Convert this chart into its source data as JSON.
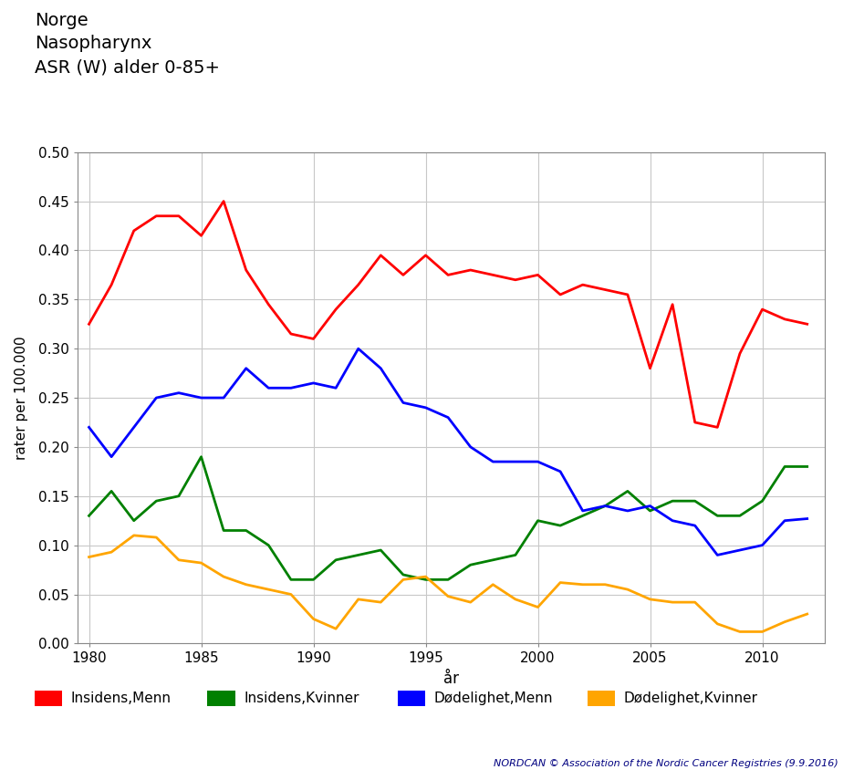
{
  "title_lines": [
    "Norge",
    "Nasopharynx",
    "ASR (W) alder 0-85+"
  ],
  "xlabel": "år",
  "ylabel": "rater per 100.000",
  "ylim": [
    0.0,
    0.5
  ],
  "yticks": [
    0.0,
    0.05,
    0.1,
    0.15,
    0.2,
    0.25,
    0.3,
    0.35,
    0.4,
    0.45,
    0.5
  ],
  "years": [
    1980,
    1981,
    1982,
    1983,
    1984,
    1985,
    1986,
    1987,
    1988,
    1989,
    1990,
    1991,
    1992,
    1993,
    1994,
    1995,
    1996,
    1997,
    1998,
    1999,
    2000,
    2001,
    2002,
    2003,
    2004,
    2005,
    2006,
    2007,
    2008,
    2009,
    2010,
    2011,
    2012
  ],
  "insidens_menn": [
    0.325,
    0.365,
    0.42,
    0.435,
    0.435,
    0.415,
    0.45,
    0.38,
    0.345,
    0.315,
    0.31,
    0.34,
    0.365,
    0.395,
    0.375,
    0.395,
    0.375,
    0.38,
    0.375,
    0.37,
    0.375,
    0.355,
    0.365,
    0.36,
    0.355,
    0.28,
    0.345,
    0.225,
    0.22,
    0.295,
    0.34,
    0.33,
    0.325
  ],
  "insidens_kvinner": [
    0.13,
    0.155,
    0.125,
    0.145,
    0.15,
    0.19,
    0.115,
    0.115,
    0.1,
    0.065,
    0.065,
    0.085,
    0.09,
    0.095,
    0.07,
    0.065,
    0.065,
    0.08,
    0.085,
    0.09,
    0.125,
    0.12,
    0.13,
    0.14,
    0.155,
    0.135,
    0.145,
    0.145,
    0.13,
    0.13,
    0.145,
    0.18,
    0.18
  ],
  "dodelighet_menn": [
    0.22,
    0.19,
    0.22,
    0.25,
    0.255,
    0.25,
    0.25,
    0.28,
    0.26,
    0.26,
    0.265,
    0.26,
    0.3,
    0.28,
    0.245,
    0.24,
    0.23,
    0.2,
    0.185,
    0.185,
    0.185,
    0.175,
    0.135,
    0.14,
    0.135,
    0.14,
    0.125,
    0.12,
    0.09,
    0.095,
    0.1,
    0.125,
    0.127
  ],
  "dodelighet_kvinner": [
    0.088,
    0.093,
    0.11,
    0.108,
    0.085,
    0.082,
    0.068,
    0.06,
    0.055,
    0.05,
    0.025,
    0.015,
    0.045,
    0.042,
    0.065,
    0.068,
    0.048,
    0.042,
    0.06,
    0.045,
    0.037,
    0.062,
    0.06,
    0.06,
    0.055,
    0.045,
    0.042,
    0.042,
    0.02,
    0.012,
    0.012,
    0.022,
    0.03
  ],
  "colors": {
    "insidens_menn": "#FF0000",
    "insidens_kvinner": "#008000",
    "dodelighet_menn": "#0000FF",
    "dodelighet_kvinner": "#FFA500"
  },
  "legend_labels": [
    "Insidens,Menn",
    "Insidens,Kvinner",
    "Dødelighet,Menn",
    "Dødelighet,Kvinner"
  ],
  "footer_text": "NORDCAN © Association of the Nordic Cancer Registries (9.9.2016)",
  "background_color": "#FFFFFF",
  "grid_color": "#C8C8C8",
  "xticks": [
    1980,
    1985,
    1990,
    1995,
    2000,
    2005,
    2010
  ]
}
